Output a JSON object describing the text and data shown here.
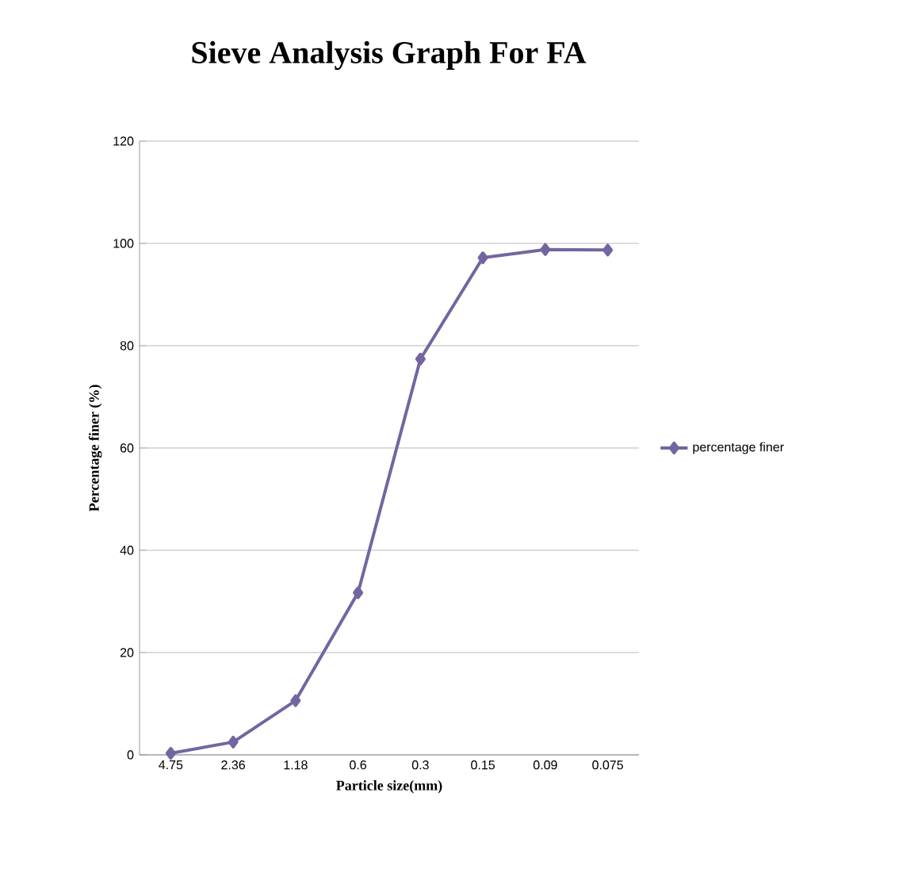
{
  "chart_data": {
    "type": "line",
    "title": "Sieve Analysis Graph For FA",
    "xlabel": "Particle size(mm)",
    "ylabel": "Percentage finer (%)",
    "categories": [
      "4.75",
      "2.36",
      "1.18",
      "0.6",
      "0.3",
      "0.15",
      "0.09",
      "0.075"
    ],
    "series": [
      {
        "name": "percentage finer",
        "color": "#7465a0",
        "values": [
          0.3,
          2.5,
          10.6,
          31.7,
          77.4,
          97.2,
          98.8,
          98.7
        ]
      }
    ],
    "ylim": [
      0,
      120
    ],
    "yticks": [
      0,
      20,
      40,
      60,
      80,
      100,
      120
    ],
    "grid": "y",
    "legend": "right",
    "marker": "diamond",
    "line_style": "solid"
  }
}
